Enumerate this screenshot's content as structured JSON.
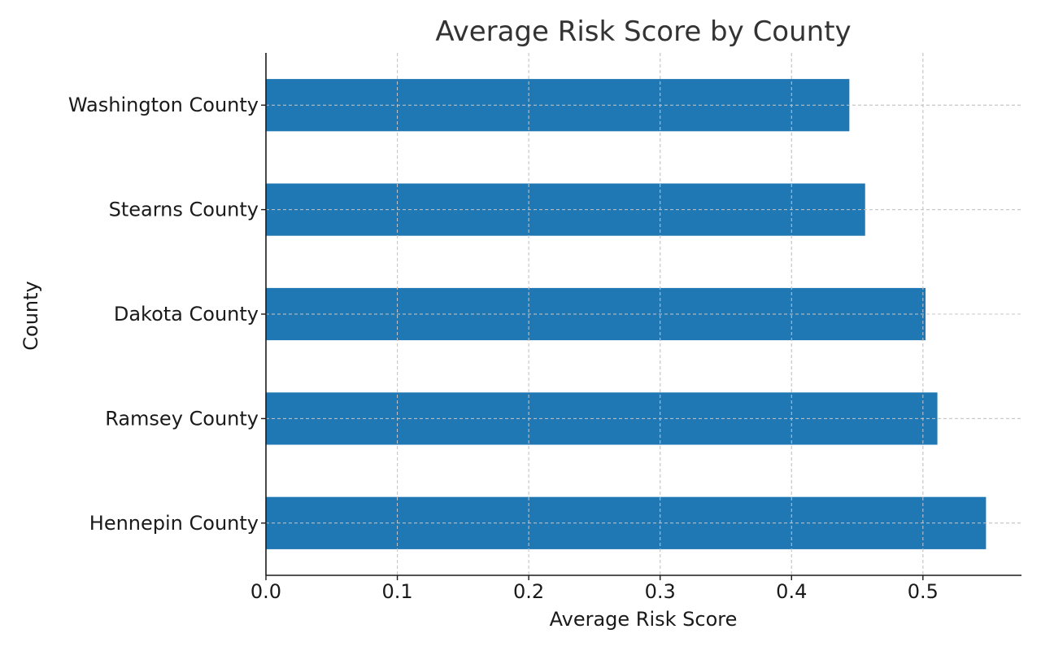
{
  "chart_data": {
    "type": "bar",
    "orientation": "horizontal",
    "title": "Average Risk Score by County",
    "xlabel": "Average Risk Score",
    "ylabel": "County",
    "categories": [
      "Washington County",
      "Stearns County",
      "Dakota County",
      "Ramsey County",
      "Hennepin County"
    ],
    "values": [
      0.444,
      0.456,
      0.502,
      0.511,
      0.548
    ],
    "xlim": [
      0.0,
      0.575
    ],
    "xticks": [
      "0.0",
      "0.1",
      "0.2",
      "0.3",
      "0.4",
      "0.5"
    ],
    "xtick_values": [
      0.0,
      0.1,
      0.2,
      0.3,
      0.4,
      0.5
    ],
    "grid": true,
    "bar_color": "#1f77b4"
  }
}
